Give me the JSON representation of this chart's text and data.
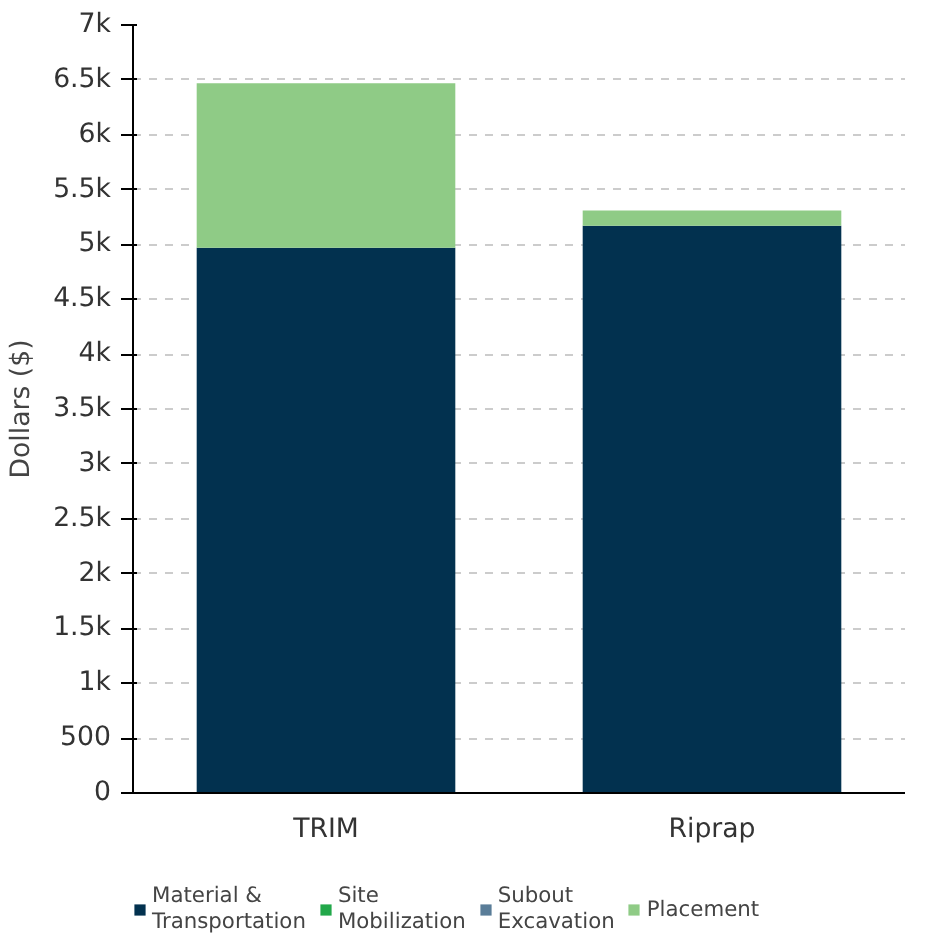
{
  "chart_data": {
    "type": "bar",
    "stacked": true,
    "ylabel": "Dollars ($)",
    "categories": [
      "TRIM",
      "Riprap"
    ],
    "series": [
      {
        "name": "Material & Transportation",
        "color": "#02314f",
        "values": [
          4970,
          5170
        ]
      },
      {
        "name": "Site Mobilization",
        "color": "#22a84a",
        "values": [
          0,
          0
        ]
      },
      {
        "name": "Subout Excavation",
        "color": "#5a7d98",
        "values": [
          0,
          0
        ]
      },
      {
        "name": "Placement",
        "color": "#8fcb86",
        "values": [
          1500,
          140
        ]
      }
    ],
    "ylim": [
      0,
      7000
    ],
    "yticks": [
      0,
      500,
      {
        "value": 1000,
        "label": "1k"
      },
      {
        "value": 1500,
        "label": "1.5k"
      },
      {
        "value": 2000,
        "label": "2k"
      },
      {
        "value": 2500,
        "label": "2.5k"
      },
      {
        "value": 3000,
        "label": "3k"
      },
      {
        "value": 3500,
        "label": "3.5k"
      },
      {
        "value": 4000,
        "label": "4k"
      },
      {
        "value": 4500,
        "label": "4.5k"
      },
      {
        "value": 5000,
        "label": "5k"
      },
      {
        "value": 5500,
        "label": "5.5k"
      },
      {
        "value": 6000,
        "label": "6k"
      },
      {
        "value": 6500,
        "label": "6.5k"
      },
      {
        "value": 7000,
        "label": "7k"
      }
    ],
    "grid": "y",
    "legend": "bottom"
  }
}
